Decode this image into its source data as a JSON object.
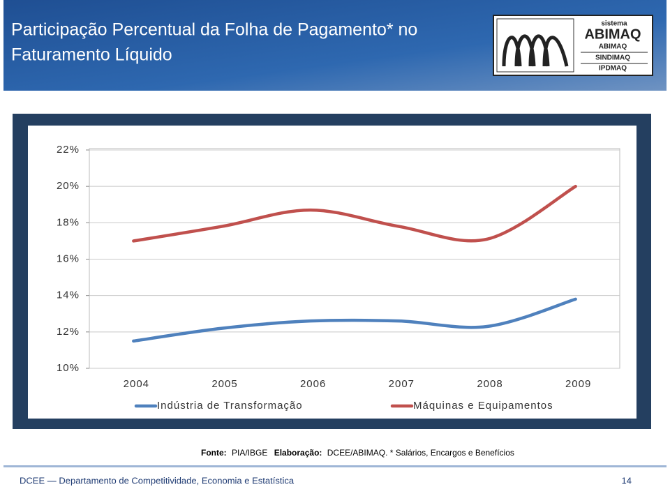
{
  "chart_data": {
    "type": "line",
    "title": [
      "Participação Percentual da Folha de Pagamento* no",
      "Faturamento Líquido"
    ],
    "categories": [
      "2004",
      "2005",
      "2006",
      "2007",
      "2008",
      "2009"
    ],
    "series": [
      {
        "name": "Indústria de Transformação",
        "color": "#4f81bd",
        "values": [
          11.5,
          12.2,
          12.6,
          12.6,
          12.3,
          13.8
        ]
      },
      {
        "name": "Máquinas e Equipamentos",
        "color": "#c0504d",
        "values": [
          17.0,
          17.8,
          18.7,
          17.8,
          17.1,
          20.0
        ]
      }
    ],
    "ylim": [
      10,
      22
    ],
    "yticks": [
      {
        "value": 10,
        "label": "10%"
      },
      {
        "value": 12,
        "label": "12%"
      },
      {
        "value": 14,
        "label": "14%"
      },
      {
        "value": 16,
        "label": "16%"
      },
      {
        "value": 18,
        "label": "18%"
      },
      {
        "value": 20,
        "label": "20%"
      },
      {
        "value": 22,
        "label": "22%"
      }
    ],
    "grid": true,
    "legend": "bottom",
    "source": [
      "Fonte:",
      "PIA/IBGE",
      "Elaboração:",
      "DCEE/ABIMAQ. * Salários, Encargos e Benefícios"
    ]
  },
  "logo": {
    "system": "sistema",
    "brand": "ABIMAQ",
    "entities": [
      "ABIMAQ",
      "SINDIMAQ",
      "IPDMAQ"
    ]
  },
  "footer": {
    "text": "DCEE — Departamento de Competitividade, Economia e Estatística",
    "page": "14"
  }
}
